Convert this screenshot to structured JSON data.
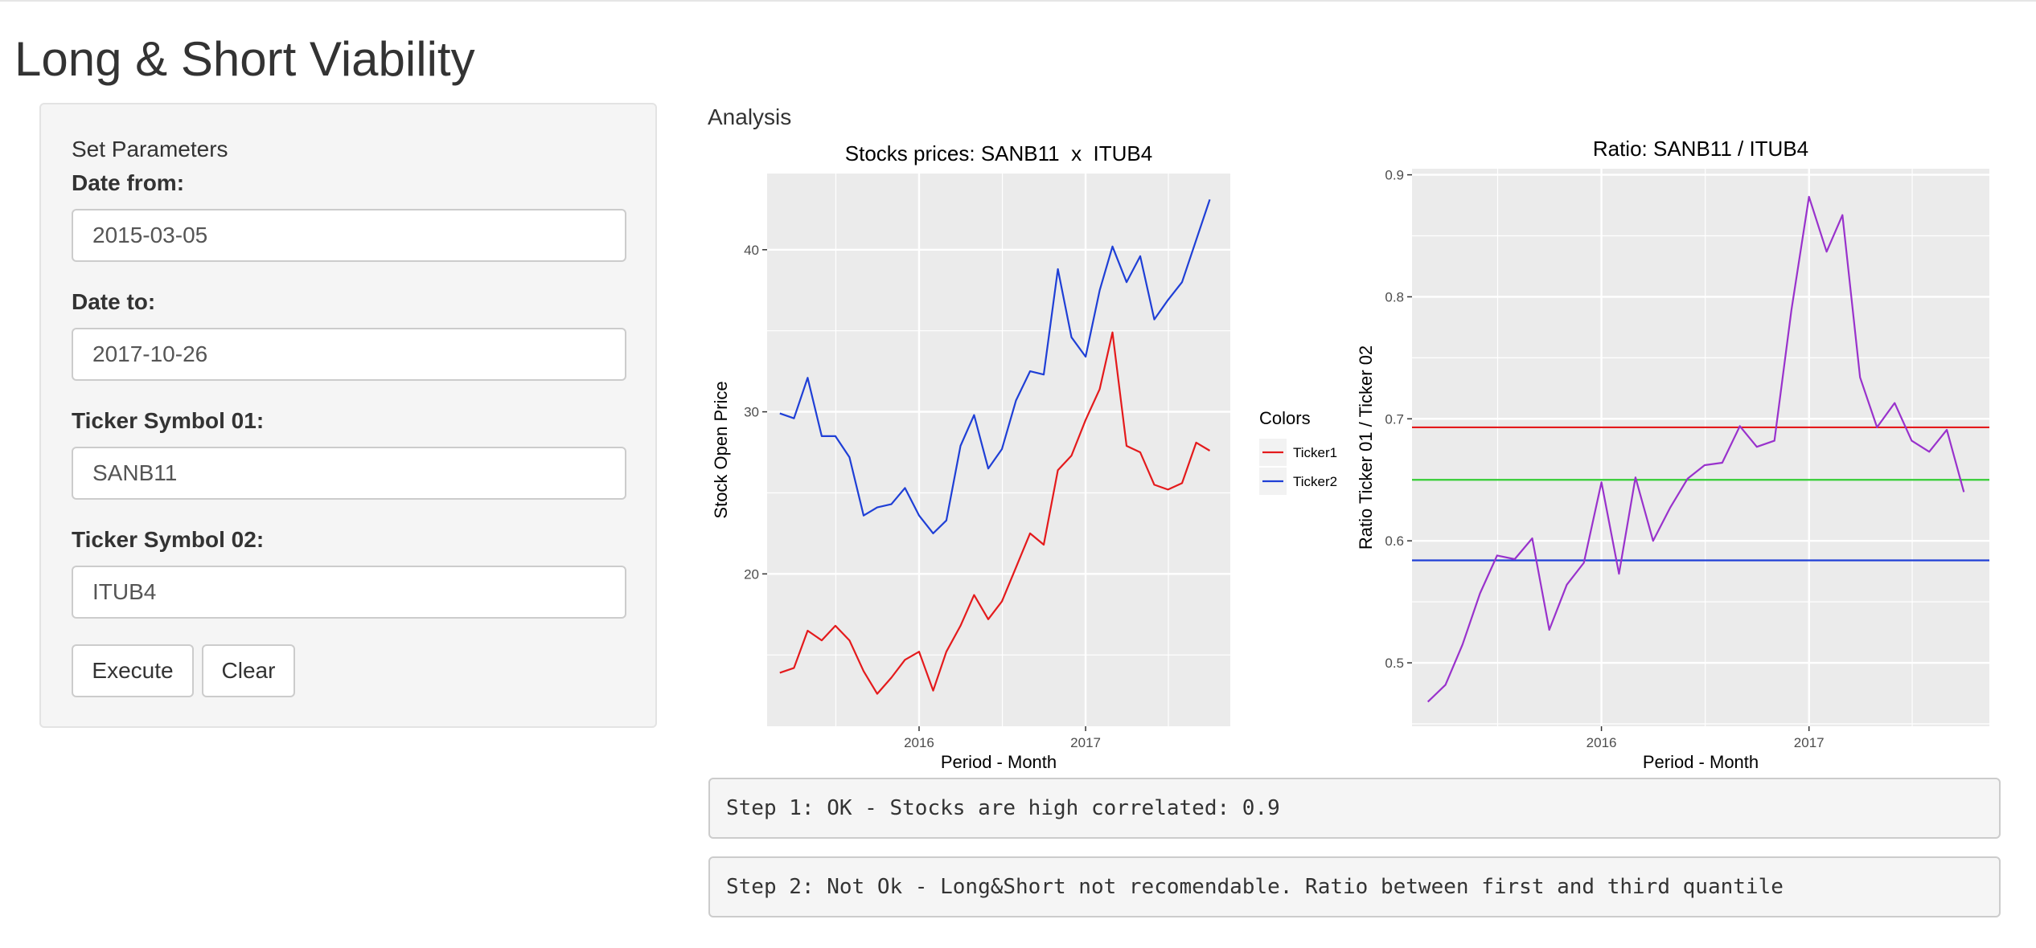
{
  "app": {
    "title": "Long & Short Viability"
  },
  "sidebar": {
    "heading": "Set Parameters",
    "date_from": {
      "label": "Date from:",
      "value": "2015-03-05"
    },
    "date_to": {
      "label": "Date to:",
      "value": "2017-10-26"
    },
    "ticker1": {
      "label": "Ticker Symbol 01:",
      "value": "SANB11"
    },
    "ticker2": {
      "label": "Ticker Symbol 02:",
      "value": "ITUB4"
    },
    "execute_label": "Execute",
    "clear_label": "Clear"
  },
  "main": {
    "analysis_label": "Analysis",
    "step1": "Step 1: OK - Stocks are high correlated: 0.9",
    "step2": "Step 2: Not Ok - Long&Short not recomendable. Ratio between first and third quantile"
  },
  "colors": {
    "panel_bg": "#ebebeb",
    "gridline": "#ffffff",
    "ticker1": "#e41a1c",
    "ticker2": "#1f3fd6",
    "ratio": "#9932cc",
    "q3_line": "#e41a1c",
    "median_line": "#33cc33",
    "q1_line": "#1f3fd6"
  },
  "chart_data": [
    {
      "type": "line",
      "title": "Stocks prices: SANB11  x  ITUB4",
      "xlabel": "Period - Month",
      "ylabel": "Stock Open Price",
      "x_ticks": [
        "2016",
        "2017"
      ],
      "y_ticks": [
        20,
        30,
        40
      ],
      "xlim": [
        "2015-02-01",
        "2017-11-15"
      ],
      "ylim": [
        10.6,
        44.7
      ],
      "grid": true,
      "legend": {
        "title": "Colors",
        "position": "right",
        "entries": [
          "Ticker1",
          "Ticker2"
        ]
      },
      "x": [
        "2015-03-01",
        "2015-04-01",
        "2015-05-01",
        "2015-06-01",
        "2015-07-01",
        "2015-08-01",
        "2015-09-01",
        "2015-10-01",
        "2015-11-01",
        "2015-12-01",
        "2016-01-01",
        "2016-02-01",
        "2016-03-01",
        "2016-04-01",
        "2016-05-01",
        "2016-06-01",
        "2016-07-01",
        "2016-08-01",
        "2016-09-01",
        "2016-10-01",
        "2016-11-01",
        "2016-12-01",
        "2017-01-01",
        "2017-02-01",
        "2017-03-01",
        "2017-04-01",
        "2017-05-01",
        "2017-06-01",
        "2017-07-01",
        "2017-08-01",
        "2017-09-01",
        "2017-10-01"
      ],
      "series": [
        {
          "name": "Ticker1",
          "values": [
            13.9,
            14.2,
            16.5,
            15.9,
            16.8,
            15.9,
            14.0,
            12.6,
            13.6,
            14.7,
            15.2,
            12.8,
            15.2,
            16.8,
            18.7,
            17.2,
            18.3,
            20.4,
            22.5,
            21.8,
            26.4,
            27.3,
            29.5,
            31.4,
            34.9,
            27.9,
            27.5,
            25.5,
            25.2,
            25.6,
            28.1,
            27.6
          ]
        },
        {
          "name": "Ticker2",
          "values": [
            29.9,
            29.6,
            32.1,
            28.5,
            28.5,
            27.2,
            23.6,
            24.1,
            24.3,
            25.3,
            23.6,
            22.5,
            23.3,
            27.9,
            29.8,
            26.5,
            27.7,
            30.7,
            32.5,
            32.3,
            38.8,
            34.6,
            33.4,
            37.5,
            40.2,
            38.0,
            39.6,
            35.7,
            36.9,
            38.0,
            40.6,
            43.1
          ]
        }
      ]
    },
    {
      "type": "line",
      "title": "Ratio: SANB11 / ITUB4",
      "xlabel": "Period - Month",
      "ylabel": "Ratio Ticker 01 / Ticker 02",
      "x_ticks": [
        "2016",
        "2017"
      ],
      "y_ticks": [
        0.5,
        0.6,
        0.7,
        0.8,
        0.9
      ],
      "xlim": [
        "2015-02-01",
        "2017-11-15"
      ],
      "ylim": [
        0.448,
        0.905
      ],
      "grid": true,
      "x": [
        "2015-03-01",
        "2015-04-01",
        "2015-05-01",
        "2015-06-01",
        "2015-07-01",
        "2015-08-01",
        "2015-09-01",
        "2015-10-01",
        "2015-11-01",
        "2015-12-01",
        "2016-01-01",
        "2016-02-01",
        "2016-03-01",
        "2016-04-01",
        "2016-05-01",
        "2016-06-01",
        "2016-07-01",
        "2016-08-01",
        "2016-09-01",
        "2016-10-01",
        "2016-11-01",
        "2016-12-01",
        "2017-01-01",
        "2017-02-01",
        "2017-03-01",
        "2017-04-01",
        "2017-05-01",
        "2017-06-01",
        "2017-07-01",
        "2017-08-01",
        "2017-09-01",
        "2017-10-01"
      ],
      "series": [
        {
          "values": [
            0.468,
            0.482,
            0.515,
            0.557,
            0.588,
            0.585,
            0.602,
            0.527,
            0.564,
            0.582,
            0.648,
            0.573,
            0.652,
            0.6,
            0.627,
            0.651,
            0.662,
            0.664,
            0.694,
            0.677,
            0.682,
            0.789,
            0.882,
            0.837,
            0.867,
            0.734,
            0.693,
            0.713,
            0.682,
            0.673,
            0.691,
            0.64
          ]
        }
      ],
      "reference_lines": [
        0.693,
        0.65,
        0.584
      ]
    }
  ]
}
